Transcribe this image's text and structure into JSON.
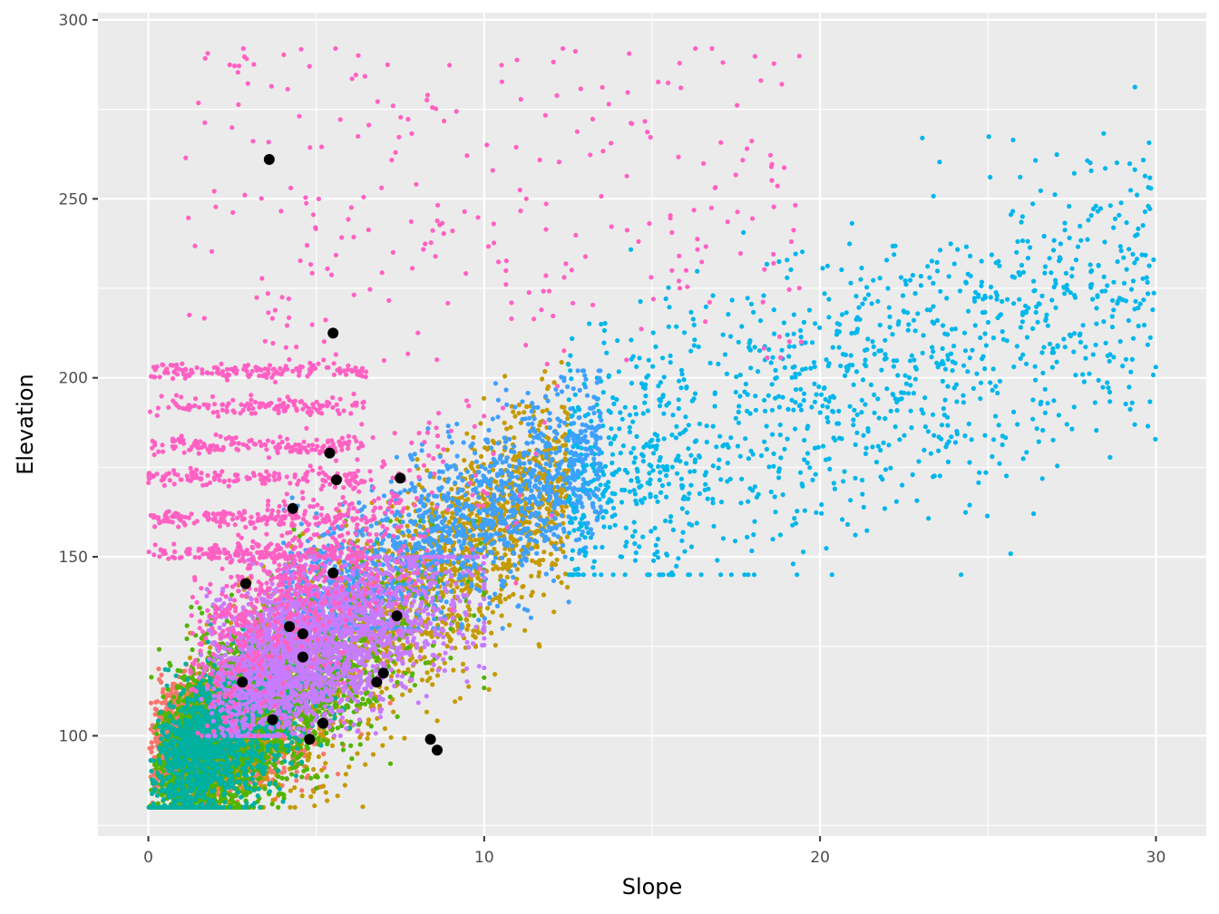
{
  "chart_data": {
    "type": "scatter",
    "title": "",
    "xlabel": "Slope",
    "ylabel": "Elevation",
    "xlim": [
      -1.5,
      31.5
    ],
    "ylim": [
      72,
      302
    ],
    "x_ticks": [
      0,
      10,
      20,
      30
    ],
    "x_tick_labels": [
      "0",
      "10",
      "20",
      "30"
    ],
    "y_ticks": [
      100,
      150,
      200,
      250,
      300
    ],
    "y_tick_labels": [
      "100",
      "150",
      "200",
      "250",
      "300"
    ],
    "grid": true,
    "legend": "none",
    "background": "#ebebeb",
    "series": [
      {
        "name": "group-1",
        "color": "#f8766d",
        "approx_points": 2500,
        "x_range": [
          0,
          7.5
        ],
        "y_range": [
          80,
          120
        ],
        "note": "dense cloud of small points"
      },
      {
        "name": "group-2",
        "color": "#c49a00",
        "approx_points": 2500,
        "x_range": [
          0.5,
          13.5
        ],
        "y_range": [
          80,
          210
        ],
        "note": "dense cloud of small points"
      },
      {
        "name": "group-3",
        "color": "#53b400",
        "approx_points": 2500,
        "x_range": [
          0,
          10
        ],
        "y_range": [
          80,
          160
        ],
        "note": "dense cloud of small points"
      },
      {
        "name": "group-4",
        "color": "#00b0a0",
        "approx_points": 1500,
        "x_range": [
          0,
          6
        ],
        "y_range": [
          80,
          140
        ],
        "note": "dense cloud of small points"
      },
      {
        "name": "group-5",
        "color": "#00b6eb",
        "approx_points": 1300,
        "x_range": [
          12,
          30
        ],
        "y_range": [
          145,
          290
        ],
        "note": "sparser cloud of small points"
      },
      {
        "name": "group-6",
        "color": "#3fa0ff",
        "approx_points": 1500,
        "x_range": [
          4,
          14
        ],
        "y_range": [
          130,
          202
        ],
        "note": "dense cloud of small points"
      },
      {
        "name": "group-7",
        "color": "#c77cff",
        "approx_points": 2500,
        "x_range": [
          1,
          10
        ],
        "y_range": [
          100,
          150
        ],
        "note": "dense cloud of small points"
      },
      {
        "name": "group-8",
        "color": "#ff61c3",
        "approx_points": 1800,
        "x_range": [
          0,
          20
        ],
        "y_range": [
          100,
          292
        ],
        "note": "horizontal bands plus sparse scatter"
      }
    ],
    "highlighted_points": {
      "color": "#000000",
      "points": [
        {
          "x": 3.6,
          "y": 261
        },
        {
          "x": 5.5,
          "y": 212.5
        },
        {
          "x": 5.4,
          "y": 179
        },
        {
          "x": 5.6,
          "y": 171.5
        },
        {
          "x": 7.5,
          "y": 172
        },
        {
          "x": 4.3,
          "y": 163.5
        },
        {
          "x": 5.5,
          "y": 145.5
        },
        {
          "x": 2.9,
          "y": 142.5
        },
        {
          "x": 7.4,
          "y": 133.5
        },
        {
          "x": 4.2,
          "y": 130.5
        },
        {
          "x": 4.6,
          "y": 128.5
        },
        {
          "x": 4.6,
          "y": 122
        },
        {
          "x": 7.0,
          "y": 117.5
        },
        {
          "x": 6.8,
          "y": 115
        },
        {
          "x": 2.8,
          "y": 115
        },
        {
          "x": 3.7,
          "y": 104.5
        },
        {
          "x": 5.2,
          "y": 103.5
        },
        {
          "x": 4.8,
          "y": 99
        },
        {
          "x": 8.4,
          "y": 99
        },
        {
          "x": 8.6,
          "y": 96
        }
      ]
    }
  }
}
